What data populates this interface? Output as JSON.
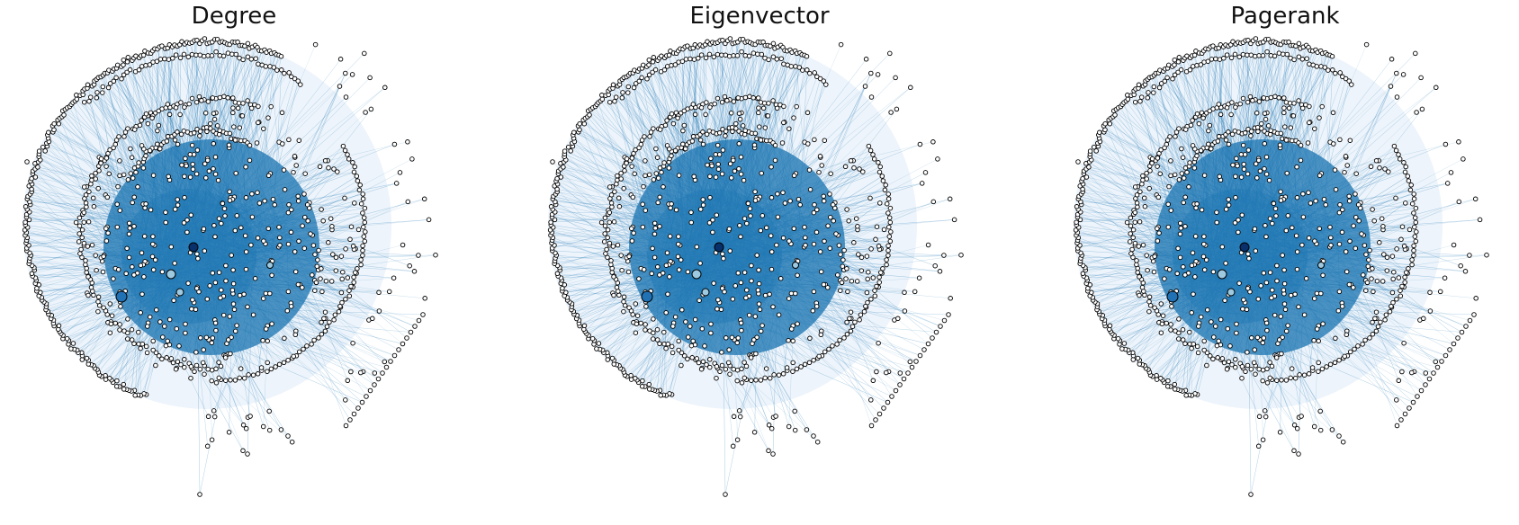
{
  "panels": [
    {
      "title": "Degree"
    },
    {
      "title": "Eigenvector"
    },
    {
      "title": "Pagerank"
    }
  ],
  "colors": {
    "background": "#ffffff",
    "edge": "#1f77b4",
    "node_fill": "#ffffff",
    "node_stroke": "#000000",
    "hub_dark": "#08306b",
    "hub_mid": "#2171b5",
    "hub_light": "#9ecae1"
  }
}
